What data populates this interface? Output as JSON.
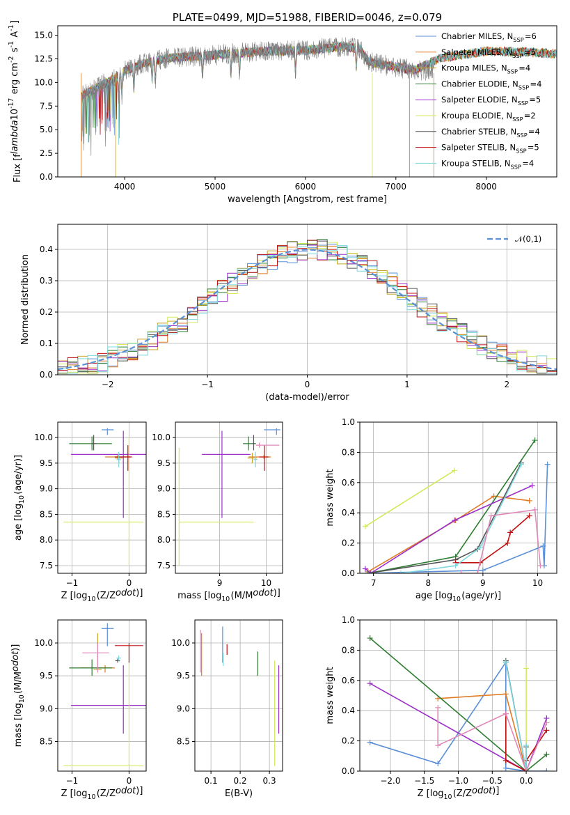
{
  "colors": {
    "chabrier_miles": "#5b8fd6",
    "salpeter_miles": "#e07b25",
    "kroupa_miles": "#c9a227",
    "chabrier_elodie": "#2e7d32",
    "salpeter_elodie": "#9b30c8",
    "kroupa_elodie": "#d4e85a",
    "chabrier_stelib": "#555555",
    "salpeter_stelib": "#c01010",
    "kroupa_stelib": "#7fd8e0",
    "grid": "#b0b0b0",
    "gray_spectrum": "#808080",
    "normal_curve": "#5b8fd6"
  },
  "chart_data": [
    {
      "id": "spectrum",
      "type": "line",
      "title": "PLATE=0499, MJD=51988, FIBERID=0046, z=0.079",
      "xlabel": "wavelength [Angstrom, rest frame]",
      "ylabel": "Flux [f$_\\lambda$10$^{-17}$ erg cm$^{-2}$ s$^{-1}$ A$^{-1}$]",
      "xlim": [
        3260,
        8780
      ],
      "ylim": [
        0,
        16
      ],
      "xticks": [
        4000,
        5000,
        6000,
        7000,
        8000
      ],
      "yticks": [
        0.0,
        2.5,
        5.0,
        7.5,
        10.0,
        12.5,
        15.0
      ],
      "grid": false,
      "legend_position": "top-right",
      "legend": [
        "Chabrier MILES, N$_{SSP}$=6",
        "Salpeter MILES, N$_{SSP}$=5",
        "Kroupa MILES, N$_{SSP}$=4",
        "Chabrier ELODIE, N$_{SSP}$=4",
        "Salpeter ELODIE, N$_{SSP}$=5",
        "Kroupa ELODIE, N$_{SSP}$=2",
        "Chabrier STELIB, N$_{SSP}$=4",
        "Salpeter STELIB, N$_{SSP}$=5",
        "Kroupa STELIB, N$_{SSP}$=4"
      ],
      "spectrum_range": [
        3520,
        7420
      ],
      "continuum": [
        [
          3520,
          8.5
        ],
        [
          3700,
          9.5
        ],
        [
          3900,
          10.5
        ],
        [
          4000,
          11.2
        ],
        [
          4200,
          12.0
        ],
        [
          4500,
          12.6
        ],
        [
          5000,
          12.9
        ],
        [
          5500,
          13.3
        ],
        [
          6000,
          13.4
        ],
        [
          6400,
          13.8
        ],
        [
          6600,
          13.6
        ],
        [
          6700,
          12.2
        ],
        [
          6900,
          11.8
        ],
        [
          7200,
          11.3
        ],
        [
          7420,
          11.2
        ]
      ],
      "models_range": [
        3520,
        8780
      ],
      "models_continuum": [
        [
          3520,
          8.5
        ],
        [
          3700,
          9.5
        ],
        [
          3900,
          10.5
        ],
        [
          4000,
          11.2
        ],
        [
          4200,
          12.0
        ],
        [
          4500,
          12.6
        ],
        [
          5000,
          12.9
        ],
        [
          5500,
          13.3
        ],
        [
          6000,
          13.4
        ],
        [
          6400,
          13.8
        ],
        [
          6600,
          13.6
        ],
        [
          6700,
          12.2
        ],
        [
          6900,
          11.8
        ],
        [
          7200,
          11.3
        ],
        [
          7500,
          12.6
        ],
        [
          8000,
          13.3
        ],
        [
          8500,
          13.2
        ],
        [
          8780,
          13.0
        ]
      ]
    },
    {
      "id": "residuals",
      "type": "histogram",
      "xlabel": "(data-model)/error",
      "ylabel": "Normed distribution",
      "xlim": [
        -2.5,
        2.5
      ],
      "ylim": [
        0,
        0.48
      ],
      "xticks": [
        -2,
        -1,
        0,
        1,
        2
      ],
      "yticks": [
        0.0,
        0.1,
        0.2,
        0.3,
        0.4
      ],
      "grid": true,
      "legend_position": "top-right",
      "legend": [
        "$\\mathcal{N}(0,1)$"
      ],
      "bins": 50
    },
    {
      "id": "age_vs_Z",
      "type": "errorbar",
      "xlabel": "Z [log$_{10}$(Z/Z$_\\odot$)]",
      "ylabel": "age  [log$_{10}$(age/yr)]",
      "xlim": [
        -1.25,
        0.3
      ],
      "ylim": [
        7.35,
        10.3
      ],
      "xticks": [
        -1,
        0
      ],
      "yticks": [
        7.5,
        8.0,
        8.5,
        9.0,
        9.5,
        10.0
      ],
      "grid": true,
      "points": [
        {
          "s": "chabrier_miles",
          "x": -0.38,
          "y": 10.15,
          "xe": [
            -0.48,
            -0.27
          ],
          "ye": [
            10.05,
            10.18
          ]
        },
        {
          "s": "salpeter_miles",
          "x": -0.2,
          "y": 9.62,
          "xe": [
            -0.42,
            0.02
          ],
          "ye": [
            9.58,
            9.66
          ]
        },
        {
          "s": "kroupa_miles",
          "x": -0.18,
          "y": 9.6,
          "xe": [
            -0.25,
            -0.11
          ],
          "ye": [
            9.5,
            9.7
          ]
        },
        {
          "s": "chabrier_elodie",
          "x": -0.65,
          "y": 9.88,
          "xe": [
            -1.05,
            -0.3
          ],
          "ye": [
            9.75,
            10.02
          ]
        },
        {
          "s": "salpeter_elodie",
          "x": -0.1,
          "y": 9.67,
          "xe": [
            -1.02,
            0.3
          ],
          "ye": [
            8.43,
            10.13
          ]
        },
        {
          "s": "kroupa_elodie",
          "x": 0.0,
          "y": 8.35,
          "xe": [
            -1.15,
            0.25
          ],
          "ye": [
            7.5,
            10.0
          ]
        },
        {
          "s": "chabrier_stelib",
          "x": -0.62,
          "y": 9.88,
          "xe": [
            -0.66,
            -0.58
          ],
          "ye": [
            9.75,
            10.05
          ]
        },
        {
          "s": "salpeter_stelib",
          "x": -0.02,
          "y": 9.62,
          "xe": [
            -0.25,
            0.05
          ],
          "ye": [
            9.35,
            9.85
          ]
        },
        {
          "s": "kroupa_stelib",
          "x": -0.18,
          "y": 9.57,
          "xe": [
            -0.22,
            -0.14
          ],
          "ye": [
            9.42,
            9.72
          ]
        }
      ]
    },
    {
      "id": "age_vs_mass",
      "type": "errorbar",
      "xlabel": "mass [log$_{10}$(M/M$_\\odot$)]",
      "ylabel": "",
      "xlim": [
        8.05,
        10.35
      ],
      "ylim": [
        7.35,
        10.3
      ],
      "xticks": [
        9,
        10
      ],
      "yticks": [
        7.5,
        8.0,
        8.5,
        9.0,
        9.5,
        10.0
      ],
      "grid": true,
      "points": [
        {
          "s": "chabrier_miles",
          "x": 10.22,
          "y": 10.15,
          "xe": [
            9.95,
            10.3
          ],
          "ye": [
            10.05,
            10.18
          ]
        },
        {
          "s": "salpeter_miles",
          "x": 9.95,
          "y": 9.62,
          "xe": [
            9.62,
            10.1
          ],
          "ye": [
            9.58,
            9.66
          ]
        },
        {
          "s": "kroupa_miles",
          "x": 9.7,
          "y": 9.6,
          "xe": [
            9.6,
            9.8
          ],
          "ye": [
            9.5,
            9.7
          ]
        },
        {
          "s": "chabrier_elodie",
          "x": 9.62,
          "y": 9.88,
          "xe": [
            9.5,
            9.78
          ],
          "ye": [
            9.75,
            10.02
          ]
        },
        {
          "s": "salpeter_elodie",
          "x": 9.05,
          "y": 9.67,
          "xe": [
            8.62,
            9.66
          ],
          "ye": [
            8.43,
            10.13
          ]
        },
        {
          "s": "kroupa_elodie",
          "x": 8.13,
          "y": 8.35,
          "xe": [
            8.13,
            9.73
          ],
          "ye": [
            7.5,
            9.8
          ]
        },
        {
          "s": "chabrier_stelib",
          "x": 9.73,
          "y": 9.88,
          "xe": [
            9.7,
            9.76
          ],
          "ye": [
            9.75,
            10.05
          ]
        },
        {
          "s": "salpeter_stelib",
          "x": 9.96,
          "y": 9.62,
          "xe": [
            9.85,
            10.05
          ],
          "ye": [
            9.35,
            9.85
          ]
        },
        {
          "s": "kroupa_stelib",
          "x": 9.77,
          "y": 9.57,
          "xe": [
            9.73,
            9.81
          ],
          "ye": [
            9.42,
            9.72
          ]
        },
        {
          "s": "salpeter_stelib",
          "x": 9.85,
          "y": 9.85,
          "xe": [
            9.78,
            10.28
          ],
          "ye": [
            9.8,
            9.9
          ],
          "c": "#e088b8"
        }
      ]
    },
    {
      "id": "weight_vs_age",
      "type": "line",
      "xlabel": "age  [log$_{10}$(age/yr)]",
      "ylabel": "mass weight",
      "xlim": [
        6.75,
        10.35
      ],
      "ylim": [
        0,
        1.0
      ],
      "xticks": [
        7,
        8,
        9,
        10
      ],
      "yticks": [
        0.0,
        0.2,
        0.4,
        0.6,
        0.8,
        1.0
      ],
      "grid": true,
      "series": [
        {
          "s": "chabrier_miles",
          "x": [
            6.9,
            9.0,
            10.1,
            10.12,
            10.18
          ],
          "y": [
            0.0,
            0.02,
            0.18,
            0.05,
            0.72
          ]
        },
        {
          "s": "salpeter_miles",
          "x": [
            6.9,
            8.5,
            9.2,
            9.85
          ],
          "y": [
            0.01,
            0.35,
            0.51,
            0.48
          ]
        },
        {
          "s": "kroupa_elodie",
          "x": [
            6.85,
            8.48
          ],
          "y": [
            0.31,
            0.68
          ]
        },
        {
          "s": "chabrier_elodie",
          "x": [
            6.9,
            8.5,
            9.95
          ],
          "y": [
            0.0,
            0.11,
            0.88
          ]
        },
        {
          "s": "salpeter_elodie",
          "x": [
            6.85,
            6.95,
            8.48,
            9.9
          ],
          "y": [
            0.03,
            0.0,
            0.35,
            0.58
          ]
        },
        {
          "s": "chabrier_stelib",
          "x": [
            6.9,
            8.5,
            8.9,
            9.7
          ],
          "y": [
            0.0,
            0.09,
            0.16,
            0.73
          ]
        },
        {
          "s": "salpeter_stelib",
          "x": [
            8.5,
            8.95,
            9.45,
            9.5,
            9.85
          ],
          "y": [
            0.07,
            0.07,
            0.2,
            0.27,
            0.38
          ]
        },
        {
          "s": "kroupa_stelib",
          "x": [
            7.5,
            8.5,
            8.95,
            9.7
          ],
          "y": [
            0.0,
            0.05,
            0.17,
            0.72
          ]
        },
        {
          "s": "pink",
          "x": [
            8.6,
            8.9,
            9.15,
            9.95,
            10.05
          ],
          "y": [
            0.0,
            0.0,
            0.38,
            0.42,
            0.05
          ],
          "c": "#e088b8"
        }
      ]
    },
    {
      "id": "mass_vs_Z",
      "type": "errorbar",
      "xlabel": "Z [log$_{10}$(Z/Z$_\\odot$)]",
      "ylabel": "mass [log$_{10}$(M/M$_\\odot$)]",
      "xlim": [
        -1.25,
        0.3
      ],
      "ylim": [
        8.05,
        10.35
      ],
      "xticks": [
        -1,
        0
      ],
      "yticks": [
        8.5,
        9.0,
        9.5,
        10.0
      ],
      "grid": true,
      "points": [
        {
          "s": "chabrier_miles",
          "x": -0.38,
          "y": 10.22,
          "xe": [
            -0.48,
            -0.27
          ],
          "ye": [
            9.95,
            10.3
          ]
        },
        {
          "s": "salpeter_miles",
          "x": -0.42,
          "y": 9.62,
          "xe": [
            -0.85,
            -0.25
          ],
          "ye": [
            9.55,
            9.66
          ]
        },
        {
          "s": "kroupa_miles",
          "x": -0.55,
          "y": 9.6,
          "xe": [
            -0.62,
            -0.48
          ],
          "ye": [
            9.6,
            10.15
          ]
        },
        {
          "s": "chabrier_elodie",
          "x": -0.65,
          "y": 9.62,
          "xe": [
            -1.05,
            -0.3
          ],
          "ye": [
            9.5,
            9.75
          ]
        },
        {
          "s": "salpeter_elodie",
          "x": -0.1,
          "y": 9.05,
          "xe": [
            -1.02,
            0.3
          ],
          "ye": [
            8.62,
            9.66
          ]
        },
        {
          "s": "kroupa_elodie",
          "x": 0.0,
          "y": 8.13,
          "xe": [
            -1.15,
            0.25
          ],
          "ye": [
            8.13,
            9.73
          ]
        },
        {
          "s": "chabrier_stelib",
          "x": -0.2,
          "y": 9.73,
          "xe": [
            -0.24,
            -0.16
          ],
          "ye": [
            9.7,
            9.76
          ]
        },
        {
          "s": "salpeter_stelib",
          "x": 0.0,
          "y": 9.96,
          "xe": [
            -0.25,
            0.25
          ],
          "ye": [
            9.7,
            10.0
          ]
        },
        {
          "s": "kroupa_stelib",
          "x": -0.18,
          "y": 9.77,
          "xe": [
            -0.22,
            -0.14
          ],
          "ye": [
            9.73,
            9.81
          ]
        },
        {
          "s": "pink",
          "x": -0.55,
          "y": 9.85,
          "xe": [
            -0.82,
            -0.35
          ],
          "ye": [
            9.55,
            10.0
          ],
          "c": "#e088b8"
        }
      ]
    },
    {
      "id": "mass_vs_ebv",
      "type": "errorbar",
      "xlabel": "E(B-V)",
      "ylabel": "",
      "xlim": [
        0.045,
        0.345
      ],
      "ylim": [
        8.05,
        10.35
      ],
      "xticks": [
        0.1,
        0.2,
        0.3
      ],
      "yticks": [
        8.5,
        9.0,
        9.5,
        10.0
      ],
      "grid": true,
      "points": [
        {
          "s": "chabrier_miles",
          "x": 0.14,
          "y": 10.1,
          "xe": [
            0.14,
            0.14
          ],
          "ye": [
            9.7,
            10.25
          ]
        },
        {
          "s": "salpeter_miles",
          "x": 0.068,
          "y": 9.9,
          "xe": [
            0.068,
            0.068
          ],
          "ye": [
            9.5,
            10.15
          ]
        },
        {
          "s": "kroupa_stelib",
          "x": 0.142,
          "y": 9.75,
          "xe": [
            0.142,
            0.142
          ],
          "ye": [
            9.65,
            9.85
          ]
        },
        {
          "s": "salpeter_stelib",
          "x": 0.155,
          "y": 9.9,
          "xe": [
            0.155,
            0.155
          ],
          "ye": [
            9.82,
            9.98
          ]
        },
        {
          "s": "chabrier_elodie",
          "x": 0.26,
          "y": 9.7,
          "xe": [
            0.26,
            0.26
          ],
          "ye": [
            9.5,
            9.87
          ]
        },
        {
          "s": "kroupa_elodie",
          "x": 0.318,
          "y": 8.9,
          "xe": [
            0.318,
            0.318
          ],
          "ye": [
            8.13,
            9.73
          ]
        },
        {
          "s": "salpeter_elodie",
          "x": 0.332,
          "y": 9.1,
          "xe": [
            0.332,
            0.332
          ],
          "ye": [
            8.62,
            9.66
          ]
        },
        {
          "s": "pink",
          "x": 0.064,
          "y": 9.7,
          "xe": [
            0.064,
            0.064
          ],
          "ye": [
            9.55,
            10.2
          ],
          "c": "#e088b8"
        }
      ]
    },
    {
      "id": "weight_vs_Z",
      "type": "line",
      "xlabel": "Z [log$_{10}$(Z/Z$_\\odot$)]",
      "ylabel": "mass weight",
      "xlim": [
        -2.45,
        0.45
      ],
      "ylim": [
        0,
        1.0
      ],
      "xticks": [
        -2.0,
        -1.5,
        -1.0,
        -0.5,
        0.0
      ],
      "xticklabels": [
        "−2.0",
        "−1.5",
        "−1.0",
        "−0.5",
        "0.0"
      ],
      "yticks": [
        0.0,
        0.2,
        0.4,
        0.6,
        0.8,
        1.0
      ],
      "grid": true,
      "series": [
        {
          "s": "chabrier_miles",
          "x": [
            -2.3,
            -1.3,
            -0.3,
            -0.3,
            0.0,
            0.3
          ],
          "y": [
            0.19,
            0.05,
            0.72,
            0.02,
            0.0,
            0.0
          ]
        },
        {
          "s": "salpeter_miles",
          "x": [
            -1.3,
            -0.3,
            0.0
          ],
          "y": [
            0.48,
            0.51,
            0.0
          ]
        },
        {
          "s": "kroupa_elodie",
          "x": [
            0.0,
            0.0
          ],
          "y": [
            0.0,
            0.68
          ]
        },
        {
          "s": "chabrier_elodie",
          "x": [
            -2.3,
            0.0,
            0.3
          ],
          "y": [
            0.88,
            0.0,
            0.11
          ]
        },
        {
          "s": "salpeter_elodie",
          "x": [
            -2.3,
            0.0,
            0.3
          ],
          "y": [
            0.58,
            0.0,
            0.35
          ]
        },
        {
          "s": "chabrier_stelib",
          "x": [
            -0.3,
            0.0,
            0.0
          ],
          "y": [
            0.73,
            0.0,
            0.16
          ]
        },
        {
          "s": "salpeter_stelib",
          "x": [
            -0.3,
            -0.3,
            0.0,
            0.0,
            0.3
          ],
          "y": [
            0.38,
            0.07,
            0.0,
            0.07,
            0.27
          ]
        },
        {
          "s": "kroupa_stelib",
          "x": [
            -0.3,
            0.0,
            0.0
          ],
          "y": [
            0.72,
            0.0,
            0.17
          ]
        },
        {
          "s": "pink",
          "x": [
            -1.3,
            -1.3,
            -0.3,
            0.0,
            0.3
          ],
          "y": [
            0.42,
            0.17,
            0.38,
            0.0,
            0.32
          ],
          "c": "#e088b8"
        }
      ]
    }
  ]
}
